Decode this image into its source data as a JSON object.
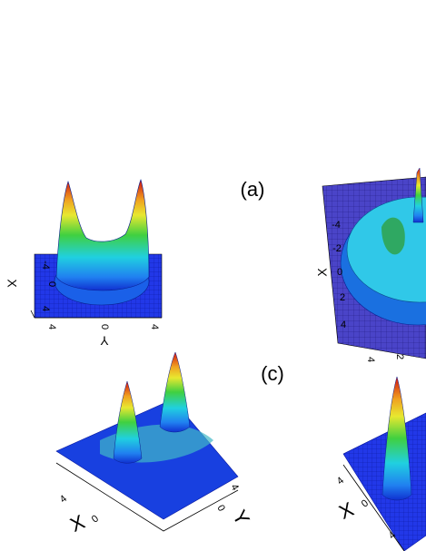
{
  "labels": [
    "(a)",
    "(c)"
  ],
  "panels": [
    {
      "x_label": "X",
      "y_label": "Y",
      "x_ticks": [
        "-4",
        "0",
        "4"
      ],
      "y_ticks": [
        "4",
        "0",
        "4"
      ]
    },
    {
      "x_label": "X",
      "x_ticks": [
        "-4",
        "-2",
        "0",
        "2",
        "4"
      ],
      "y_ticks": [
        "4",
        "2"
      ]
    },
    {
      "x_label": "X",
      "y_label": "Y",
      "x_ticks": [
        "4",
        "0"
      ],
      "y_ticks": [
        "4",
        "0"
      ]
    },
    {
      "x_label": "X",
      "x_ticks": [
        "4",
        "0",
        "4"
      ]
    }
  ]
}
